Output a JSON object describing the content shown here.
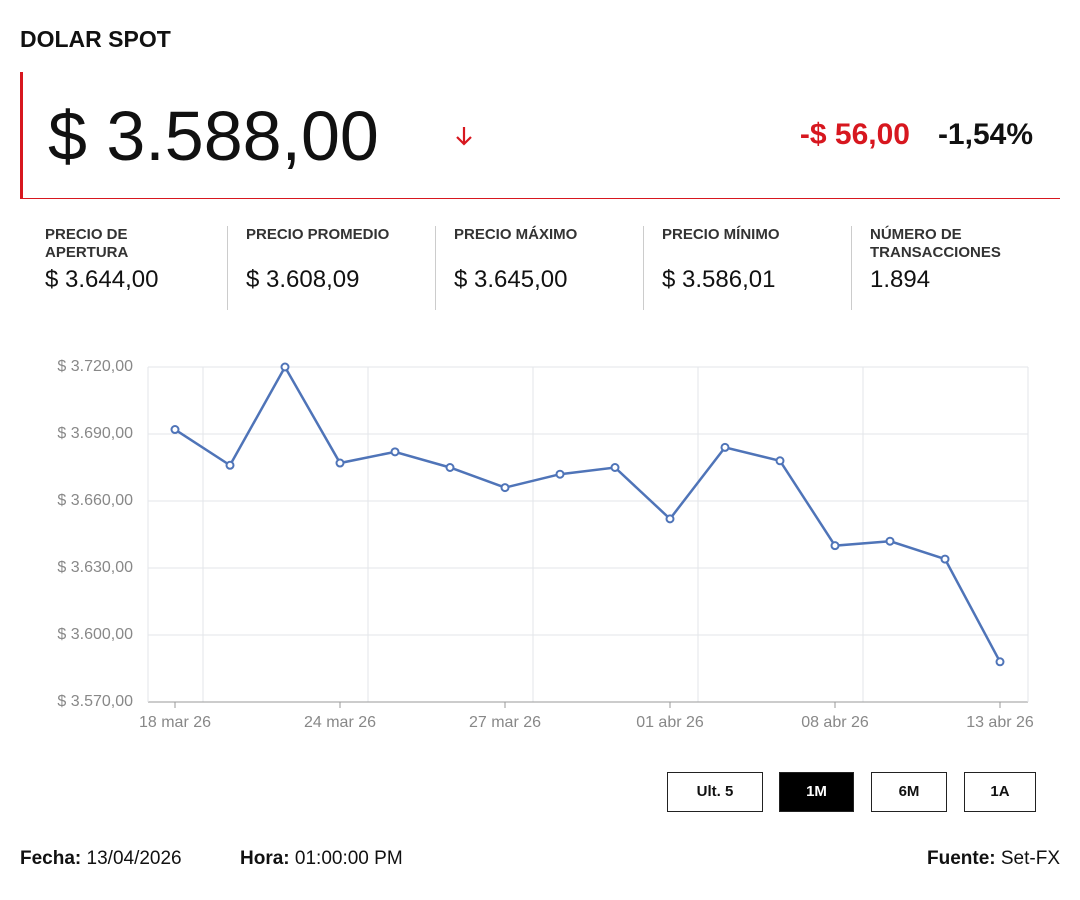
{
  "header": {
    "title": "DOLAR SPOT",
    "price": "$ 3.588,00",
    "change": "-$ 56,00",
    "change_pct": "-1,54%"
  },
  "stats": [
    {
      "label": "PRECIO DE APERTURA",
      "value": "$ 3.644,00"
    },
    {
      "label": "PRECIO PROMEDIO",
      "value": "$ 3.608,09"
    },
    {
      "label": "PRECIO MÁXIMO",
      "value": "$ 3.645,00"
    },
    {
      "label": "PRECIO MÍNIMO",
      "value": "$ 3.586,01"
    },
    {
      "label": "NÚMERO DE TRANSACCIONES",
      "value": "1.894"
    }
  ],
  "chart_data": {
    "type": "line",
    "color": "#4f74b8",
    "grid": true,
    "categories": [
      "18 mar 26",
      null,
      null,
      "24 mar 26",
      null,
      null,
      "27 mar 26",
      null,
      null,
      "01 abr 26",
      null,
      null,
      "08 abr 26",
      null,
      null,
      "13 abr 26"
    ],
    "values": [
      3692,
      3676,
      3720,
      3677,
      3682,
      3675,
      3666,
      3672,
      3675,
      3652,
      3684,
      3678,
      3640,
      3642,
      3634,
      3588
    ],
    "ylim": [
      3570,
      3720
    ],
    "yticks": [
      {
        "value": 3570,
        "label": "$ 3.570,00"
      },
      {
        "value": 3600,
        "label": "$ 3.600,00"
      },
      {
        "value": 3630,
        "label": "$ 3.630,00"
      },
      {
        "value": 3660,
        "label": "$ 3.660,00"
      },
      {
        "value": 3690,
        "label": "$ 3.690,00"
      },
      {
        "value": 3720,
        "label": "$ 3.720,00"
      }
    ]
  },
  "buttons": [
    "Ult. 5",
    "1M",
    "6M",
    "1A"
  ],
  "footer": {
    "date_label": "Fecha:",
    "date": "13/04/2026",
    "time_label": "Hora:",
    "time": "01:00:00 PM",
    "source_label": "Fuente:",
    "source": "Set-FX"
  }
}
